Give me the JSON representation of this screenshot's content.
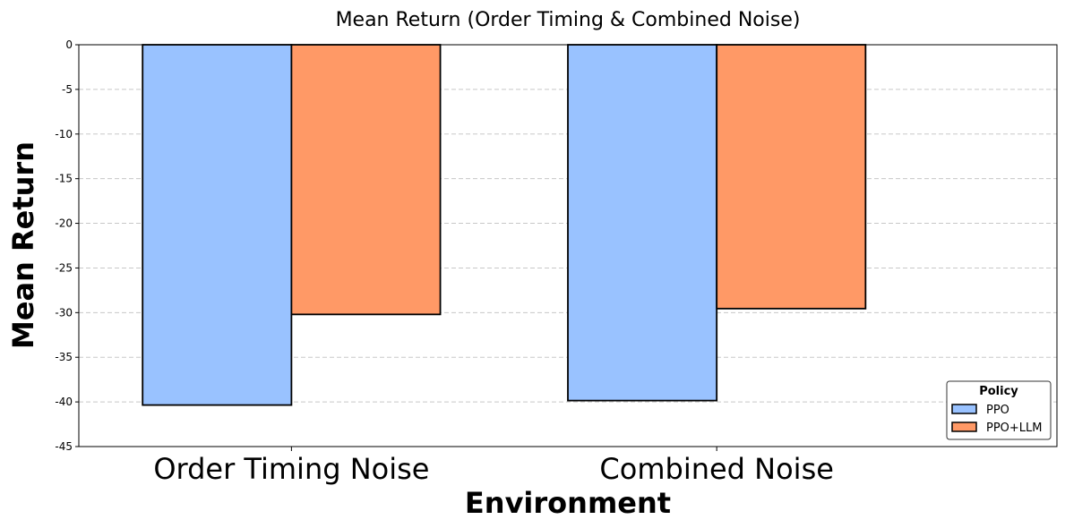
{
  "chart_data": {
    "type": "bar",
    "title": "Mean Return (Order Timing & Combined Noise)",
    "xlabel": "Environment",
    "ylabel": "Mean Return",
    "categories": [
      "Order Timing Noise",
      "Combined Noise"
    ],
    "series": [
      {
        "name": "PPO",
        "values": [
          -40.35,
          -39.85
        ],
        "color": "#99c2ff"
      },
      {
        "name": "PPO+LLM",
        "values": [
          -30.2,
          -29.55
        ],
        "color": "#ff9966"
      }
    ],
    "ylim": [
      -45,
      0
    ],
    "yticks": [
      0,
      -5,
      -10,
      -15,
      -20,
      -25,
      -30,
      -35,
      -40,
      -45
    ],
    "grid": "y dashed",
    "legend": {
      "title": "Policy",
      "placement": "lower-right"
    }
  }
}
